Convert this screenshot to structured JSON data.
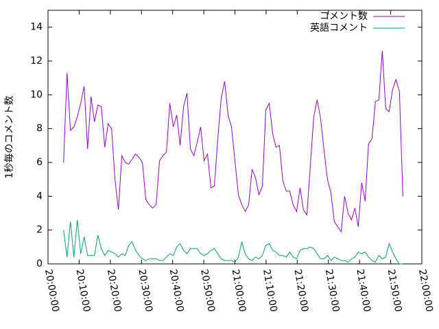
{
  "chart_data": {
    "type": "line",
    "y_label": "1秒毎のコメント数",
    "x": [
      "20:05:00",
      "20:06:06",
      "20:07:12",
      "20:08:18",
      "20:09:24",
      "20:10:30",
      "20:11:36",
      "20:12:42",
      "20:13:48",
      "20:14:54",
      "20:16:00",
      "20:17:06",
      "20:18:12",
      "20:19:18",
      "20:20:24",
      "20:21:30",
      "20:22:36",
      "20:23:42",
      "20:24:48",
      "20:25:54",
      "20:27:00",
      "20:28:06",
      "20:29:12",
      "20:30:18",
      "20:31:24",
      "20:32:30",
      "20:33:36",
      "20:34:42",
      "20:35:48",
      "20:36:54",
      "20:38:00",
      "20:39:06",
      "20:40:12",
      "20:41:18",
      "20:42:24",
      "20:43:30",
      "20:44:36",
      "20:45:42",
      "20:46:48",
      "20:47:54",
      "20:49:00",
      "20:50:06",
      "20:51:12",
      "20:52:18",
      "20:53:24",
      "20:54:30",
      "20:55:36",
      "20:56:42",
      "20:57:48",
      "20:58:54",
      "21:00:00",
      "21:01:06",
      "21:02:12",
      "21:03:18",
      "21:04:24",
      "21:05:30",
      "21:06:36",
      "21:07:42",
      "21:08:48",
      "21:09:54",
      "21:11:00",
      "21:12:06",
      "21:13:12",
      "21:14:18",
      "21:15:24",
      "21:16:30",
      "21:17:36",
      "21:18:42",
      "21:19:48",
      "21:20:54",
      "21:22:00",
      "21:23:06",
      "21:24:12",
      "21:25:18",
      "21:26:24",
      "21:27:30",
      "21:28:36",
      "21:29:42",
      "21:30:48",
      "21:31:54",
      "21:33:00",
      "21:34:06",
      "21:35:12",
      "21:36:18",
      "21:37:24",
      "21:38:30",
      "21:39:36",
      "21:40:42",
      "21:41:48",
      "21:42:54",
      "21:44:00",
      "21:45:06",
      "21:46:12",
      "21:47:18",
      "21:48:24",
      "21:49:30",
      "21:50:36",
      "21:51:42",
      "21:52:48",
      "21:53:54"
    ],
    "series": [
      {
        "name": "コメント数",
        "color": "#9400d3",
        "values": [
          6.0,
          11.3,
          7.9,
          8.1,
          8.7,
          9.5,
          10.5,
          6.8,
          9.9,
          8.4,
          9.4,
          9.3,
          6.9,
          8.3,
          8.0,
          5.0,
          3.2,
          6.4,
          6.0,
          5.9,
          6.2,
          6.5,
          6.3,
          6.0,
          3.8,
          3.5,
          3.3,
          3.5,
          6.1,
          6.4,
          6.6,
          9.5,
          8.1,
          8.8,
          7.0,
          9.3,
          10.1,
          6.8,
          6.4,
          7.2,
          8.1,
          6.1,
          6.5,
          4.5,
          4.6,
          7.4,
          9.8,
          10.8,
          8.8,
          8.1,
          6.1,
          4.1,
          3.5,
          3.1,
          3.5,
          5.6,
          5.1,
          4.1,
          4.6,
          9.1,
          9.5,
          7.7,
          6.9,
          7.0,
          4.9,
          4.3,
          4.3,
          3.5,
          3.1,
          4.5,
          3.2,
          2.9,
          5.8,
          8.7,
          9.7,
          8.6,
          6.7,
          5.0,
          4.2,
          2.5,
          2.2,
          1.9,
          4.0,
          3.0,
          2.6,
          3.3,
          2.2,
          4.8,
          3.7,
          7.1,
          7.4,
          9.6,
          9.7,
          12.6,
          9.2,
          9.0,
          10.3,
          10.9,
          10.2,
          4.0
        ]
      },
      {
        "name": "英語コメント",
        "color": "#009e73",
        "values": [
          2.0,
          0.4,
          2.5,
          0.4,
          2.6,
          0.6,
          1.6,
          0.5,
          0.5,
          0.5,
          1.7,
          0.9,
          0.5,
          0.8,
          0.7,
          0.6,
          0.4,
          0.6,
          0.5,
          1.1,
          1.3,
          0.8,
          0.5,
          0.3,
          0.2,
          0.3,
          0.3,
          0.3,
          0.2,
          0.2,
          0.4,
          0.6,
          0.5,
          1.0,
          1.2,
          0.8,
          0.6,
          0.9,
          0.9,
          0.9,
          0.6,
          0.5,
          0.6,
          0.8,
          0.9,
          0.6,
          0.3,
          0.2,
          0.2,
          0.2,
          0.1,
          0.4,
          1.3,
          0.6,
          0.3,
          0.2,
          0.4,
          0.3,
          0.5,
          1.1,
          1.2,
          0.8,
          0.7,
          0.5,
          0.5,
          0.4,
          0.7,
          0.4,
          0.3,
          0.8,
          0.9,
          0.9,
          1.0,
          0.9,
          0.6,
          0.3,
          0.3,
          0.5,
          0.2,
          0.4,
          0.3,
          0.2,
          0.2,
          0.1,
          0.3,
          0.4,
          0.7,
          0.6,
          0.7,
          0.4,
          0.2,
          0.1,
          0.5,
          0.3,
          0.4,
          1.2,
          0.7,
          0.3,
          0.0,
          0.0
        ]
      }
    ],
    "xlim": [
      "20:00:00",
      "22:00:00"
    ],
    "xticks": [
      "20:00:00",
      "20:10:00",
      "20:20:00",
      "20:30:00",
      "20:40:00",
      "20:50:00",
      "21:00:00",
      "21:10:00",
      "21:20:00",
      "21:30:00",
      "21:40:00",
      "21:50:00",
      "22:00:00"
    ],
    "ylim": [
      0,
      15
    ],
    "yticks": [
      0,
      2,
      4,
      6,
      8,
      10,
      12,
      14
    ],
    "legend": "top-right"
  }
}
